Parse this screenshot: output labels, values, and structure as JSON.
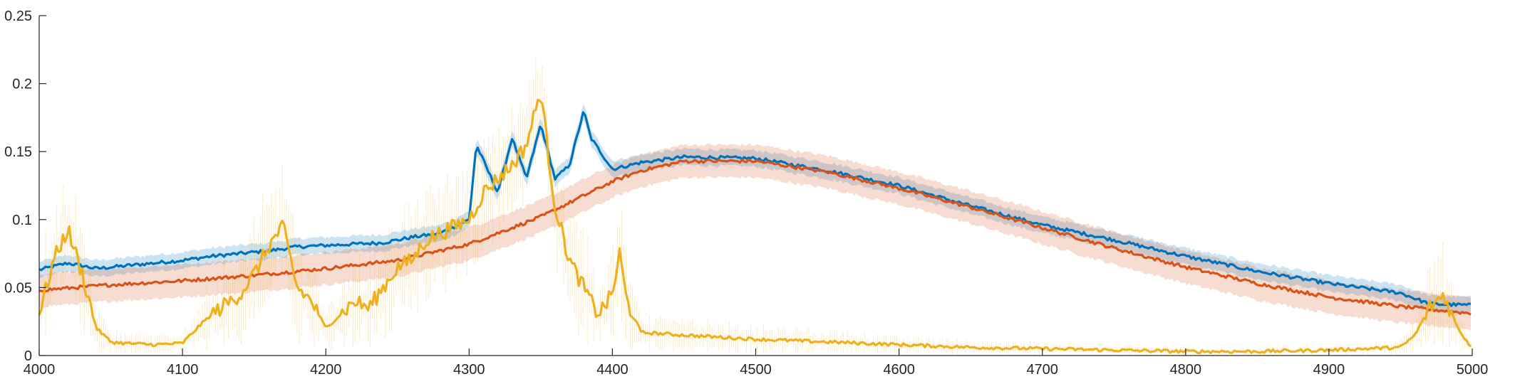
{
  "chart_data": {
    "type": "line",
    "title": "",
    "xlabel": "",
    "ylabel": "",
    "xlim": [
      4000,
      5000
    ],
    "ylim": [
      0,
      0.25
    ],
    "grid": false,
    "legend": "none",
    "x_ticks": [
      4000,
      4100,
      4200,
      4300,
      4400,
      4500,
      4600,
      4700,
      4800,
      4900,
      5000
    ],
    "x_tick_labels": [
      "4000",
      "4100",
      "4200",
      "4300",
      "4400",
      "4500",
      "4600",
      "4700",
      "4800",
      "4900",
      "5000"
    ],
    "y_ticks": [
      0,
      0.05,
      0.1,
      0.15,
      0.2,
      0.25
    ],
    "y_tick_labels": [
      "0",
      "0.05",
      "0.1",
      "0.15",
      "0.2",
      "0.25"
    ],
    "series": [
      {
        "color": "#0072BD",
        "band_color": "#0072BD",
        "x": [
          4000,
          4020,
          4040,
          4060,
          4080,
          4100,
          4120,
          4140,
          4160,
          4180,
          4200,
          4220,
          4240,
          4260,
          4280,
          4300,
          4305,
          4320,
          4330,
          4340,
          4350,
          4360,
          4370,
          4380,
          4385,
          4400,
          4420,
          4450,
          4500,
          4550,
          4600,
          4650,
          4700,
          4750,
          4800,
          4850,
          4900,
          4950,
          4970,
          5000
        ],
        "values": [
          0.063,
          0.068,
          0.064,
          0.066,
          0.068,
          0.07,
          0.073,
          0.075,
          0.077,
          0.08,
          0.081,
          0.082,
          0.083,
          0.087,
          0.09,
          0.1,
          0.155,
          0.12,
          0.16,
          0.13,
          0.17,
          0.13,
          0.14,
          0.18,
          0.16,
          0.137,
          0.142,
          0.146,
          0.145,
          0.136,
          0.125,
          0.11,
          0.096,
          0.085,
          0.073,
          0.062,
          0.053,
          0.046,
          0.038,
          0.037
        ],
        "band_half_width": 0.006
      },
      {
        "color": "#D95319",
        "band_color": "#D95319",
        "x": [
          4000,
          4050,
          4100,
          4150,
          4200,
          4250,
          4300,
          4350,
          4400,
          4420,
          4450,
          4500,
          4550,
          4600,
          4650,
          4700,
          4750,
          4800,
          4850,
          4900,
          4950,
          5000
        ],
        "values": [
          0.048,
          0.052,
          0.055,
          0.059,
          0.064,
          0.07,
          0.082,
          0.102,
          0.128,
          0.136,
          0.143,
          0.143,
          0.135,
          0.123,
          0.109,
          0.094,
          0.079,
          0.065,
          0.053,
          0.043,
          0.036,
          0.031
        ],
        "band_half_width": 0.012
      },
      {
        "color": "#EDB120",
        "band_color": "#EDB120",
        "x": [
          4000,
          4010,
          4020,
          4030,
          4040,
          4050,
          4060,
          4080,
          4100,
          4110,
          4120,
          4140,
          4150,
          4160,
          4170,
          4180,
          4190,
          4200,
          4210,
          4220,
          4230,
          4240,
          4250,
          4260,
          4270,
          4280,
          4290,
          4300,
          4310,
          4320,
          4330,
          4340,
          4350,
          4355,
          4360,
          4370,
          4380,
          4390,
          4400,
          4405,
          4410,
          4420,
          4450,
          4500,
          4550,
          4600,
          4650,
          4700,
          4750,
          4800,
          4850,
          4900,
          4950,
          4960,
          4970,
          4980,
          4990,
          5000
        ],
        "values": [
          0.03,
          0.07,
          0.093,
          0.06,
          0.02,
          0.01,
          0.009,
          0.008,
          0.009,
          0.02,
          0.03,
          0.045,
          0.06,
          0.08,
          0.095,
          0.05,
          0.04,
          0.02,
          0.03,
          0.04,
          0.035,
          0.05,
          0.065,
          0.07,
          0.085,
          0.09,
          0.095,
          0.1,
          0.12,
          0.13,
          0.14,
          0.155,
          0.195,
          0.15,
          0.11,
          0.07,
          0.05,
          0.03,
          0.045,
          0.075,
          0.04,
          0.017,
          0.015,
          0.012,
          0.01,
          0.008,
          0.006,
          0.005,
          0.004,
          0.003,
          0.003,
          0.004,
          0.006,
          0.015,
          0.035,
          0.045,
          0.02,
          0.005
        ],
        "noise_amplitude": 0.03
      }
    ]
  }
}
